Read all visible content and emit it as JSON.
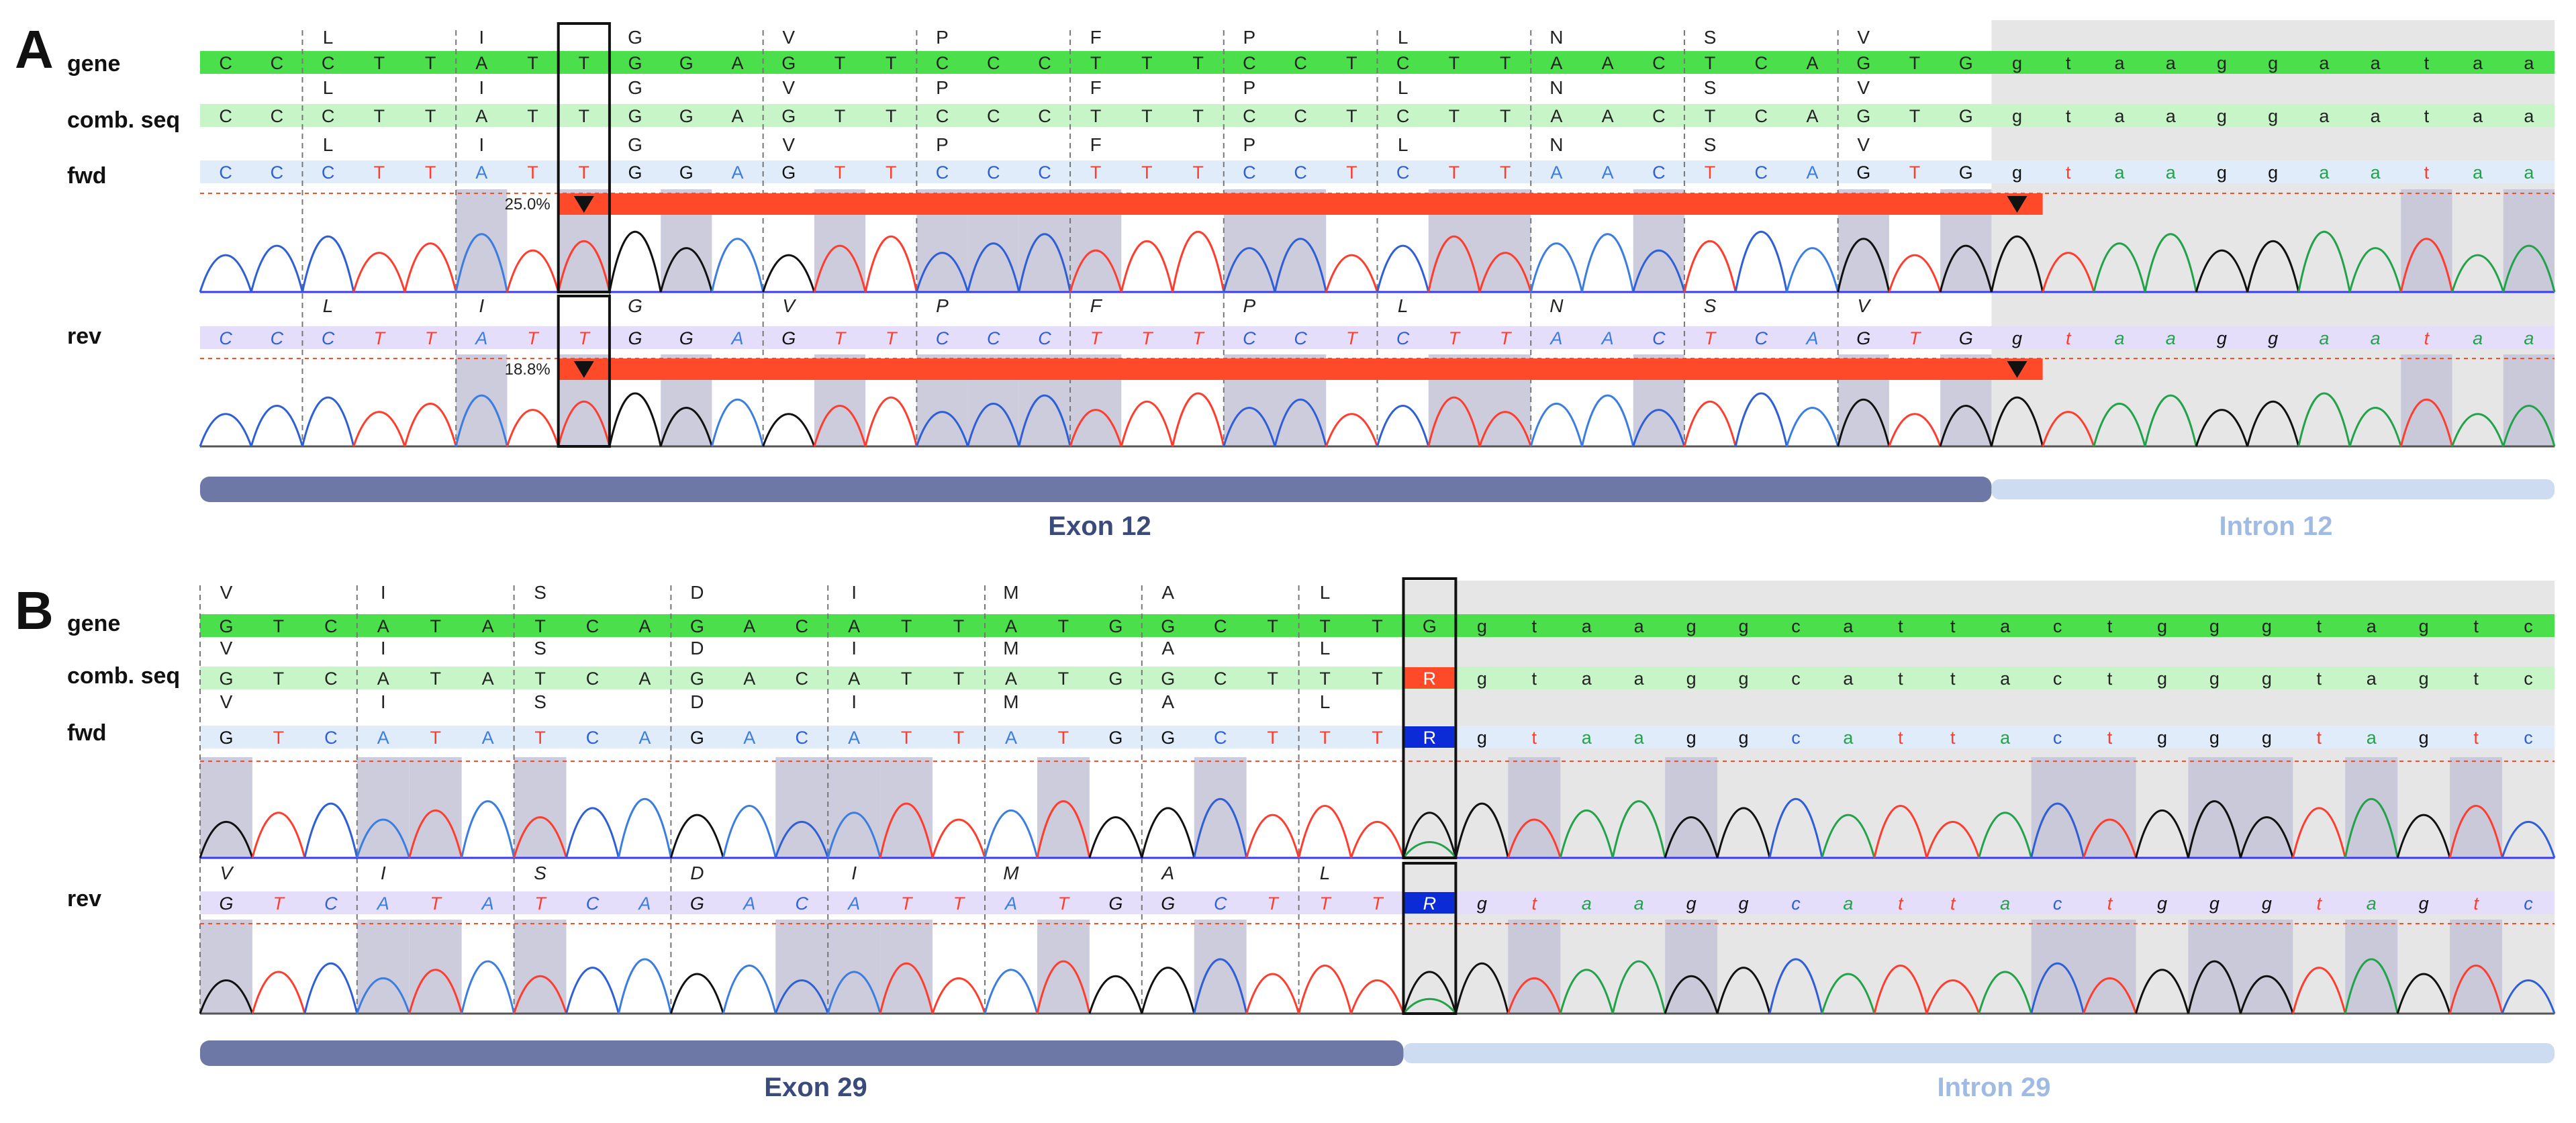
{
  "colors": {
    "A": "#3b7de0",
    "C": "#2e5fd6",
    "G": "#111111",
    "T": "#ff3d2e",
    "a": "#22a34a",
    "c": "#2e5fd6",
    "g": "#111111",
    "t": "#ff3d2e",
    "gene_bar": "#4be04b",
    "comb_bar": "#c8f5c8",
    "fwd_bar": "#e1ecfa",
    "rev_bar": "#e4defa",
    "highlight": "#c3c3d6",
    "intron_bg": "#e6e6e6",
    "alert": "#ff4a2a",
    "ambig_blue": "#0a2bd6",
    "exon": "#6e78a6",
    "intron": "#cddcf0"
  },
  "panels": [
    {
      "letter": "A",
      "labels": {
        "gene": "gene",
        "comb": "comb. seq",
        "fwd": "fwd",
        "rev": "rev"
      },
      "gene": [
        "C",
        "C",
        "C",
        "T",
        "T",
        "A",
        "T",
        "T",
        "G",
        "G",
        "A",
        "G",
        "T",
        "T",
        "C",
        "C",
        "C",
        "T",
        "T",
        "T",
        "C",
        "C",
        "T",
        "C",
        "T",
        "T",
        "A",
        "A",
        "C",
        "T",
        "C",
        "A",
        "G",
        "T",
        "G",
        "g",
        "t",
        "a",
        "a",
        "g",
        "g",
        "a",
        "a",
        "t",
        "a",
        "a"
      ],
      "comb": [
        "C",
        "C",
        "C",
        "T",
        "T",
        "A",
        "T",
        "T",
        "G",
        "G",
        "A",
        "G",
        "T",
        "T",
        "C",
        "C",
        "C",
        "T",
        "T",
        "T",
        "C",
        "C",
        "T",
        "C",
        "T",
        "T",
        "A",
        "A",
        "C",
        "T",
        "C",
        "A",
        "G",
        "T",
        "G",
        "g",
        "t",
        "a",
        "a",
        "g",
        "g",
        "a",
        "a",
        "t",
        "a",
        "a"
      ],
      "fwd": [
        "C",
        "C",
        "C",
        "T",
        "T",
        "A",
        "T",
        "T",
        "G",
        "G",
        "A",
        "G",
        "T",
        "T",
        "C",
        "C",
        "C",
        "T",
        "T",
        "T",
        "C",
        "C",
        "T",
        "C",
        "T",
        "T",
        "A",
        "A",
        "C",
        "T",
        "C",
        "A",
        "G",
        "T",
        "G",
        "g",
        "t",
        "a",
        "a",
        "g",
        "g",
        "a",
        "a",
        "t",
        "a",
        "a"
      ],
      "rev": [
        "C",
        "C",
        "C",
        "T",
        "T",
        "A",
        "T",
        "T",
        "G",
        "G",
        "A",
        "G",
        "T",
        "T",
        "C",
        "C",
        "C",
        "T",
        "T",
        "T",
        "C",
        "C",
        "T",
        "C",
        "T",
        "T",
        "A",
        "A",
        "C",
        "T",
        "C",
        "A",
        "G",
        "T",
        "G",
        "g",
        "t",
        "a",
        "a",
        "g",
        "g",
        "a",
        "a",
        "t",
        "a",
        "a"
      ],
      "aa": [
        [
          "L",
          2
        ],
        [
          "I",
          5
        ],
        [
          "G",
          8
        ],
        [
          "V",
          11
        ],
        [
          "P",
          14
        ],
        [
          "F",
          17
        ],
        [
          "P",
          20
        ],
        [
          "L",
          23
        ],
        [
          "N",
          26
        ],
        [
          "S",
          29
        ],
        [
          "V",
          32
        ]
      ],
      "highlight_fwd": [
        5,
        7,
        9,
        12,
        14,
        15,
        16,
        17,
        20,
        21,
        24,
        25,
        28,
        32,
        34,
        43,
        45
      ],
      "highlight_rev": [
        5,
        7,
        9,
        12,
        14,
        15,
        16,
        17,
        20,
        21,
        24,
        25,
        28,
        32,
        34,
        43,
        45
      ],
      "intron_start": 35,
      "boxed": 7,
      "alerts": [
        {
          "track": "fwd",
          "label": "25.0%",
          "start": 7,
          "end": 36
        },
        {
          "track": "rev",
          "label": "18.8%",
          "start": 7,
          "end": 36
        }
      ],
      "ambiguous": [],
      "exon_label": "Exon 12",
      "intron_label": "Intron 12"
    },
    {
      "letter": "B",
      "labels": {
        "gene": "gene",
        "comb": "comb. seq",
        "fwd": "fwd",
        "rev": "rev"
      },
      "gene": [
        "G",
        "T",
        "C",
        "A",
        "T",
        "A",
        "T",
        "C",
        "A",
        "G",
        "A",
        "C",
        "A",
        "T",
        "T",
        "A",
        "T",
        "G",
        "G",
        "C",
        "T",
        "T",
        "T",
        "G",
        "g",
        "t",
        "a",
        "a",
        "g",
        "g",
        "c",
        "a",
        "t",
        "t",
        "a",
        "c",
        "t",
        "g",
        "g",
        "g",
        "t",
        "a",
        "g",
        "t",
        "c"
      ],
      "comb": [
        "G",
        "T",
        "C",
        "A",
        "T",
        "A",
        "T",
        "C",
        "A",
        "G",
        "A",
        "C",
        "A",
        "T",
        "T",
        "A",
        "T",
        "G",
        "G",
        "C",
        "T",
        "T",
        "T",
        "R",
        "g",
        "t",
        "a",
        "a",
        "g",
        "g",
        "c",
        "a",
        "t",
        "t",
        "a",
        "c",
        "t",
        "g",
        "g",
        "g",
        "t",
        "a",
        "g",
        "t",
        "c"
      ],
      "fwd": [
        "G",
        "T",
        "C",
        "A",
        "T",
        "A",
        "T",
        "C",
        "A",
        "G",
        "A",
        "C",
        "A",
        "T",
        "T",
        "A",
        "T",
        "G",
        "G",
        "C",
        "T",
        "T",
        "T",
        "R",
        "g",
        "t",
        "a",
        "a",
        "g",
        "g",
        "c",
        "a",
        "t",
        "t",
        "a",
        "c",
        "t",
        "g",
        "g",
        "g",
        "t",
        "a",
        "g",
        "t",
        "c"
      ],
      "rev": [
        "G",
        "T",
        "C",
        "A",
        "T",
        "A",
        "T",
        "C",
        "A",
        "G",
        "A",
        "C",
        "A",
        "T",
        "T",
        "A",
        "T",
        "G",
        "G",
        "C",
        "T",
        "T",
        "T",
        "R",
        "g",
        "t",
        "a",
        "a",
        "g",
        "g",
        "c",
        "a",
        "t",
        "t",
        "a",
        "c",
        "t",
        "g",
        "g",
        "g",
        "t",
        "a",
        "g",
        "t",
        "c"
      ],
      "aa": [
        [
          "V",
          0
        ],
        [
          "I",
          3
        ],
        [
          "S",
          6
        ],
        [
          "D",
          9
        ],
        [
          "I",
          12
        ],
        [
          "M",
          15
        ],
        [
          "A",
          18
        ],
        [
          "L",
          21
        ]
      ],
      "highlight_fwd": [
        0,
        3,
        4,
        6,
        11,
        12,
        13,
        16,
        19,
        25,
        28,
        35,
        36,
        38,
        39,
        41,
        43
      ],
      "highlight_rev": [
        0,
        3,
        4,
        6,
        11,
        12,
        13,
        16,
        19,
        25,
        28,
        35,
        36,
        38,
        39,
        41,
        43
      ],
      "intron_start": 23,
      "boxed": 23,
      "alerts": [],
      "ambiguous": [
        {
          "track": "comb",
          "col": 23,
          "color": "alert"
        },
        {
          "track": "fwd",
          "col": 23,
          "color": "ambig_blue"
        },
        {
          "track": "rev",
          "col": 23,
          "color": "ambig_blue"
        }
      ],
      "exon_label": "Exon 29",
      "intron_label": "Intron 29"
    }
  ]
}
